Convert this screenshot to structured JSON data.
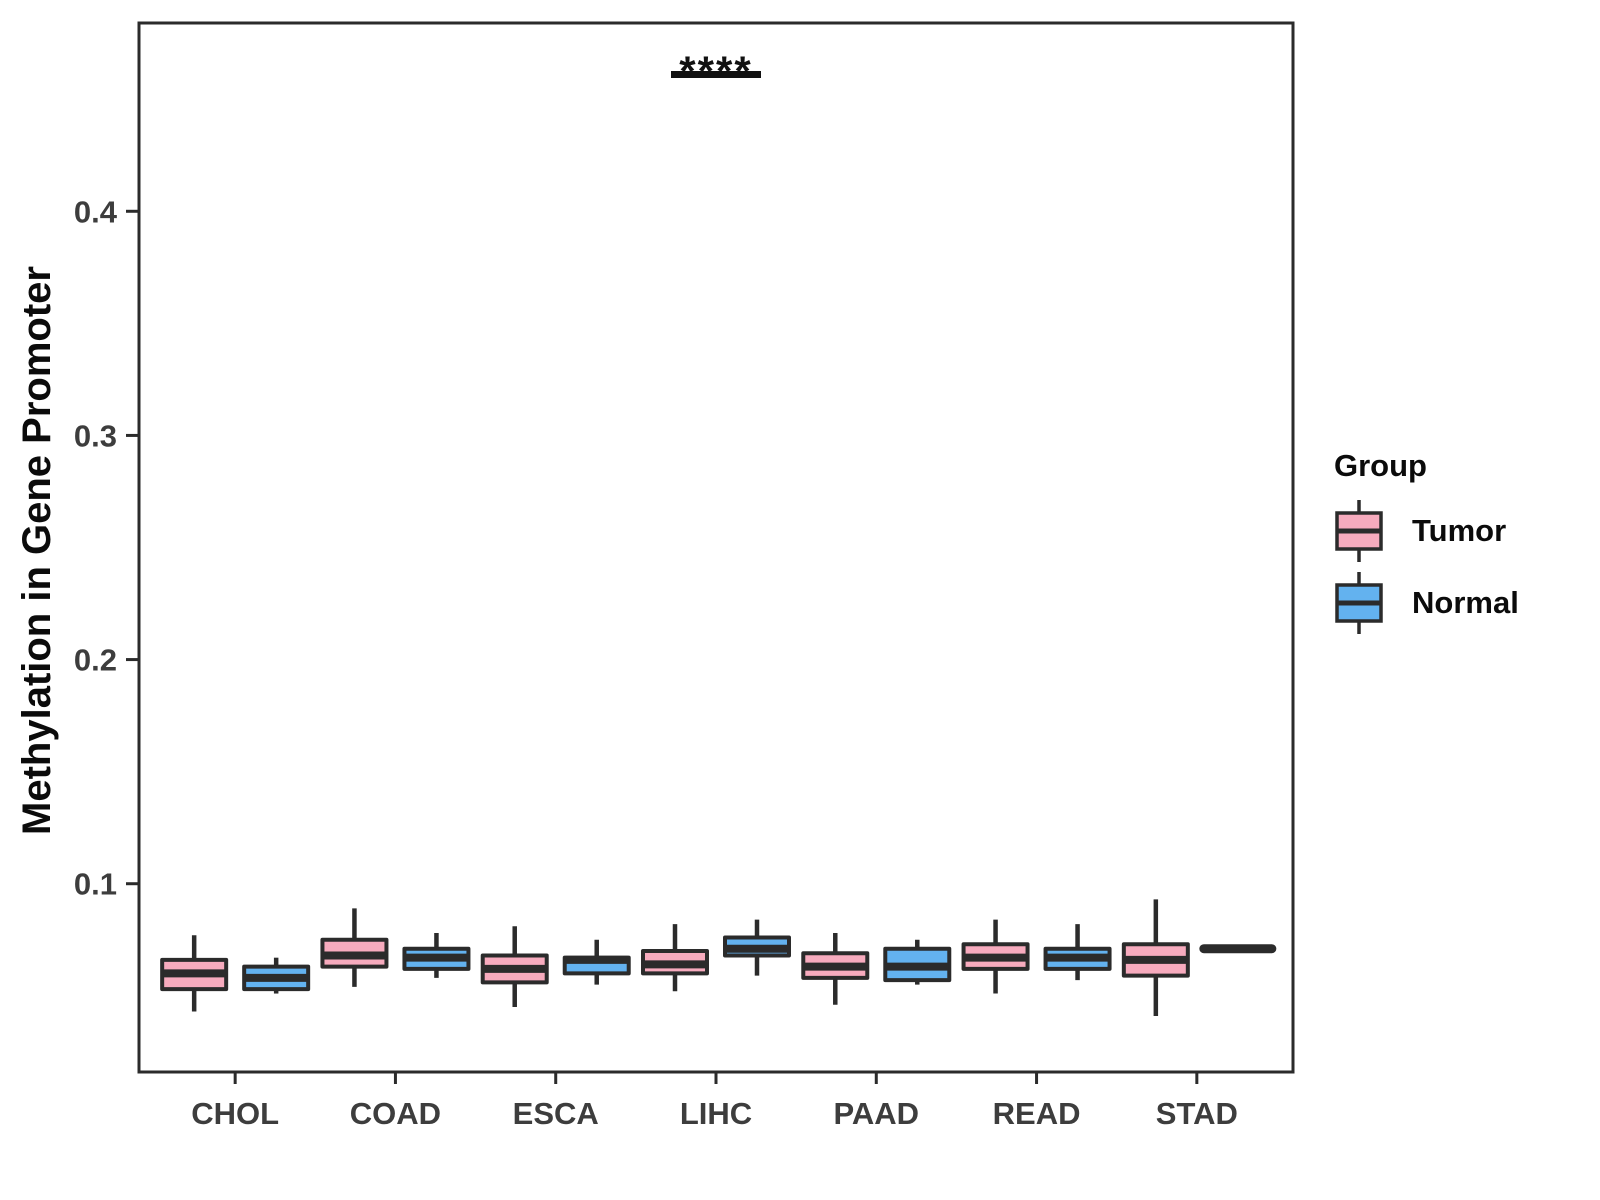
{
  "colors": {
    "tumor": "#F7ABBE",
    "normal": "#63B2EF",
    "stroke": "#2b2b2b",
    "tick_text": "#3d3d3d",
    "title_text": "#0b0b0b",
    "background": "#ffffff"
  },
  "y_axis": {
    "title": "Methylation in Gene Promoter",
    "ticks": [
      {
        "label": "0.1",
        "value": 0.1
      },
      {
        "label": "0.2",
        "value": 0.2
      },
      {
        "label": "0.3",
        "value": 0.3
      },
      {
        "label": "0.4",
        "value": 0.4
      }
    ]
  },
  "legend": {
    "title": "Group",
    "items": [
      {
        "label": "Tumor",
        "color": "#F7ABBE"
      },
      {
        "label": "Normal",
        "color": "#63B2EF"
      }
    ]
  },
  "chart_data": {
    "type": "boxplot",
    "title": "",
    "xlabel": "",
    "ylabel": "Methylation in Gene Promoter",
    "ylim": [
      0.016,
      0.484
    ],
    "grid": false,
    "legend_position": "right",
    "categories": [
      "CHOL",
      "COAD",
      "ESCA",
      "LIHC",
      "PAAD",
      "READ",
      "STAD"
    ],
    "series": [
      {
        "name": "Tumor",
        "color": "#F7ABBE",
        "boxes": [
          {
            "low": 0.043,
            "q1": 0.053,
            "median": 0.06,
            "q3": 0.066,
            "high": 0.077
          },
          {
            "low": 0.054,
            "q1": 0.063,
            "median": 0.068,
            "q3": 0.075,
            "high": 0.089
          },
          {
            "low": 0.045,
            "q1": 0.056,
            "median": 0.062,
            "q3": 0.068,
            "high": 0.081
          },
          {
            "low": 0.052,
            "q1": 0.06,
            "median": 0.064,
            "q3": 0.07,
            "high": 0.082
          },
          {
            "low": 0.046,
            "q1": 0.058,
            "median": 0.063,
            "q3": 0.069,
            "high": 0.078
          },
          {
            "low": 0.051,
            "q1": 0.062,
            "median": 0.067,
            "q3": 0.073,
            "high": 0.084
          },
          {
            "low": 0.041,
            "q1": 0.059,
            "median": 0.066,
            "q3": 0.073,
            "high": 0.093
          }
        ]
      },
      {
        "name": "Normal",
        "color": "#63B2EF",
        "boxes": [
          {
            "low": 0.051,
            "q1": 0.053,
            "median": 0.058,
            "q3": 0.063,
            "high": 0.067
          },
          {
            "low": 0.058,
            "q1": 0.062,
            "median": 0.067,
            "q3": 0.071,
            "high": 0.078
          },
          {
            "low": 0.055,
            "q1": 0.06,
            "median": 0.066,
            "q3": 0.067,
            "high": 0.075
          },
          {
            "low": 0.059,
            "q1": 0.068,
            "median": 0.071,
            "q3": 0.076,
            "high": 0.084
          },
          {
            "low": 0.055,
            "q1": 0.057,
            "median": 0.063,
            "q3": 0.071,
            "high": 0.075
          },
          {
            "low": 0.057,
            "q1": 0.062,
            "median": 0.067,
            "q3": 0.071,
            "high": 0.082
          },
          {
            "low": 0.071,
            "q1": 0.071,
            "median": 0.071,
            "q3": 0.071,
            "high": 0.071
          }
        ]
      }
    ],
    "annotations": [
      {
        "label": "****",
        "category": "LIHC",
        "y": 0.461
      }
    ]
  }
}
